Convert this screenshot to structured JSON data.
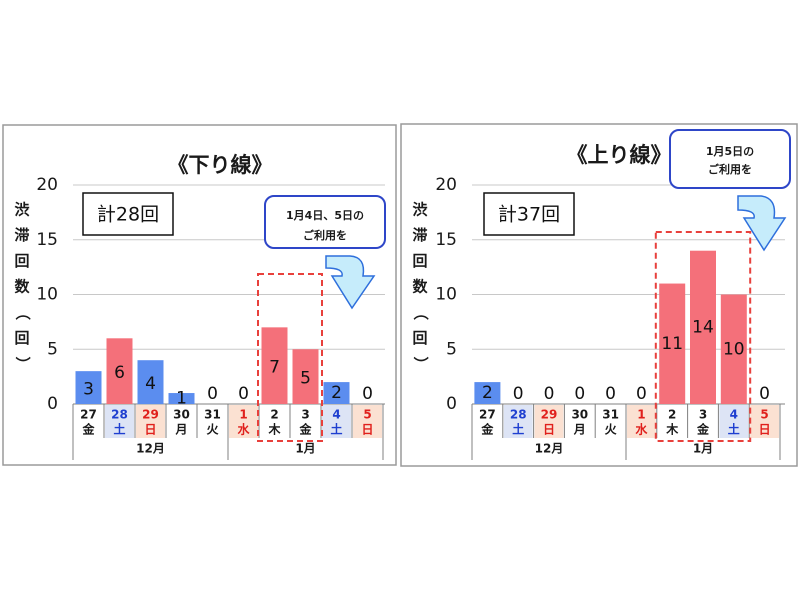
{
  "colors": {
    "weekday_bar": "#5b8def",
    "holiday_bar": "#f4707a",
    "weekday_text": "#1a1a1a",
    "saturday_text": "#1f3fd0",
    "holiday_text": "#e0201c",
    "saturday_cell": "#dde4f5",
    "holiday_cell": "#fbe1d2",
    "callout_border": "#2e46c8",
    "arrow_fill": "#c6ecfb",
    "arrow_stroke": "#2e6fdc",
    "highlight_dash": "#e8403c"
  },
  "chart_data": [
    {
      "type": "bar",
      "title": "《下り線》",
      "ylabel": "渋滞回数（回）",
      "ylim": [
        0,
        20
      ],
      "yticks": [
        "0",
        "5",
        "10",
        "15",
        "20"
      ],
      "categories": [
        {
          "day": "27",
          "weekday": "金",
          "kind": "weekday"
        },
        {
          "day": "28",
          "weekday": "土",
          "kind": "saturday"
        },
        {
          "day": "29",
          "weekday": "日",
          "kind": "holiday"
        },
        {
          "day": "30",
          "weekday": "月",
          "kind": "weekday"
        },
        {
          "day": "31",
          "weekday": "火",
          "kind": "weekday"
        },
        {
          "day": "1",
          "weekday": "水",
          "kind": "holiday"
        },
        {
          "day": "2",
          "weekday": "木",
          "kind": "weekday"
        },
        {
          "day": "3",
          "weekday": "金",
          "kind": "weekday"
        },
        {
          "day": "4",
          "weekday": "土",
          "kind": "saturday"
        },
        {
          "day": "5",
          "weekday": "日",
          "kind": "holiday"
        }
      ],
      "values": [
        3,
        6,
        4,
        1,
        0,
        0,
        7,
        5,
        2,
        0
      ],
      "bar_types": [
        "weekday",
        "holiday",
        "weekday",
        "weekday",
        "weekday",
        "holiday",
        "holiday",
        "holiday",
        "weekday",
        "weekday"
      ],
      "months": [
        {
          "label": "12月",
          "from": 0,
          "to": 4
        },
        {
          "label": "1月",
          "from": 5,
          "to": 9
        }
      ],
      "total": "計28回",
      "callout": [
        "1月4日、5日の",
        "ご利用を"
      ],
      "highlight": {
        "from": 6,
        "to": 7
      }
    },
    {
      "type": "bar",
      "title": "《上り線》",
      "ylabel": "渋滞回数（回）",
      "ylim": [
        0,
        20
      ],
      "yticks": [
        "0",
        "5",
        "10",
        "15",
        "20"
      ],
      "categories": [
        {
          "day": "27",
          "weekday": "金",
          "kind": "weekday"
        },
        {
          "day": "28",
          "weekday": "土",
          "kind": "saturday"
        },
        {
          "day": "29",
          "weekday": "日",
          "kind": "holiday"
        },
        {
          "day": "30",
          "weekday": "月",
          "kind": "weekday"
        },
        {
          "day": "31",
          "weekday": "火",
          "kind": "weekday"
        },
        {
          "day": "1",
          "weekday": "水",
          "kind": "holiday"
        },
        {
          "day": "2",
          "weekday": "木",
          "kind": "weekday"
        },
        {
          "day": "3",
          "weekday": "金",
          "kind": "weekday"
        },
        {
          "day": "4",
          "weekday": "土",
          "kind": "saturday"
        },
        {
          "day": "5",
          "weekday": "日",
          "kind": "holiday"
        }
      ],
      "values": [
        2,
        0,
        0,
        0,
        0,
        0,
        11,
        14,
        10,
        0
      ],
      "bar_types": [
        "weekday",
        "weekday",
        "weekday",
        "weekday",
        "weekday",
        "weekday",
        "holiday",
        "holiday",
        "holiday",
        "weekday"
      ],
      "months": [
        {
          "label": "12月",
          "from": 0,
          "to": 4
        },
        {
          "label": "1月",
          "from": 5,
          "to": 9
        }
      ],
      "total": "計37回",
      "callout": [
        "1月5日の",
        "ご利用を"
      ],
      "highlight": {
        "from": 6,
        "to": 8
      }
    }
  ]
}
